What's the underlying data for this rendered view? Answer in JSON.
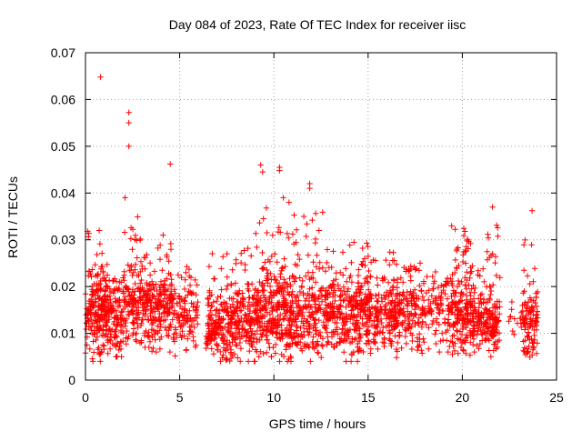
{
  "chart_data": {
    "type": "scatter",
    "title": "Day 084 of 2023, Rate Of TEC Index for receiver iisc",
    "xlabel": "GPS time / hours",
    "ylabel": "ROTI / TECUs",
    "xlim": [
      0,
      25
    ],
    "ylim": [
      0,
      0.07
    ],
    "xticks": [
      0,
      5,
      10,
      15,
      20,
      25
    ],
    "xtick_labels": [
      "0",
      "5",
      "10",
      "15",
      "20",
      "25"
    ],
    "yticks": [
      0,
      0.01,
      0.02,
      0.03,
      0.04,
      0.05,
      0.06,
      0.07
    ],
    "ytick_labels": [
      "0",
      "0.01",
      "0.02",
      "0.03",
      "0.04",
      "0.05",
      "0.06",
      "0.07"
    ],
    "grid": true,
    "legend": "none",
    "marker": "plus",
    "color": "#ff0000",
    "notable_points": [
      {
        "x": 0.8,
        "y": 0.0648
      },
      {
        "x": 2.3,
        "y": 0.0572
      },
      {
        "x": 2.3,
        "y": 0.055
      },
      {
        "x": 2.3,
        "y": 0.05
      },
      {
        "x": 4.5,
        "y": 0.0462
      },
      {
        "x": 9.3,
        "y": 0.046
      },
      {
        "x": 9.4,
        "y": 0.0445
      },
      {
        "x": 10.3,
        "y": 0.0455
      },
      {
        "x": 10.3,
        "y": 0.0448
      },
      {
        "x": 11.9,
        "y": 0.042
      },
      {
        "x": 11.9,
        "y": 0.041
      },
      {
        "x": 2.1,
        "y": 0.039
      },
      {
        "x": 10.5,
        "y": 0.039
      },
      {
        "x": 10.8,
        "y": 0.038
      },
      {
        "x": 23.7,
        "y": 0.0362
      },
      {
        "x": 21.6,
        "y": 0.037
      },
      {
        "x": 9.6,
        "y": 0.0368
      }
    ],
    "bands": [
      {
        "x_start": 0.0,
        "x_end": 1.2,
        "y_min": 0.004,
        "y_max": 0.034,
        "y_center": 0.014,
        "count": 220
      },
      {
        "x_start": 1.2,
        "x_end": 2.0,
        "y_min": 0.005,
        "y_max": 0.022,
        "y_center": 0.013,
        "count": 110
      },
      {
        "x_start": 2.0,
        "x_end": 3.4,
        "y_min": 0.007,
        "y_max": 0.035,
        "y_center": 0.016,
        "count": 200
      },
      {
        "x_start": 3.4,
        "x_end": 4.7,
        "y_min": 0.006,
        "y_max": 0.031,
        "y_center": 0.015,
        "count": 180
      },
      {
        "x_start": 4.7,
        "x_end": 6.0,
        "y_min": 0.005,
        "y_max": 0.025,
        "y_center": 0.013,
        "count": 110
      },
      {
        "x_start": 6.4,
        "x_end": 7.8,
        "y_min": 0.004,
        "y_max": 0.028,
        "y_center": 0.011,
        "count": 190
      },
      {
        "x_start": 7.8,
        "x_end": 9.0,
        "y_min": 0.004,
        "y_max": 0.029,
        "y_center": 0.012,
        "count": 160
      },
      {
        "x_start": 9.0,
        "x_end": 10.0,
        "y_min": 0.005,
        "y_max": 0.035,
        "y_center": 0.014,
        "count": 160
      },
      {
        "x_start": 10.0,
        "x_end": 11.0,
        "y_min": 0.004,
        "y_max": 0.033,
        "y_center": 0.014,
        "count": 170
      },
      {
        "x_start": 11.0,
        "x_end": 12.6,
        "y_min": 0.004,
        "y_max": 0.036,
        "y_center": 0.013,
        "count": 200
      },
      {
        "x_start": 12.6,
        "x_end": 14.0,
        "y_min": 0.004,
        "y_max": 0.028,
        "y_center": 0.013,
        "count": 170
      },
      {
        "x_start": 14.0,
        "x_end": 15.2,
        "y_min": 0.004,
        "y_max": 0.03,
        "y_center": 0.014,
        "count": 190
      },
      {
        "x_start": 15.2,
        "x_end": 16.5,
        "y_min": 0.006,
        "y_max": 0.028,
        "y_center": 0.014,
        "count": 160
      },
      {
        "x_start": 16.5,
        "x_end": 18.0,
        "y_min": 0.004,
        "y_max": 0.025,
        "y_center": 0.014,
        "count": 160
      },
      {
        "x_start": 18.0,
        "x_end": 19.4,
        "y_min": 0.006,
        "y_max": 0.024,
        "y_center": 0.014,
        "count": 100
      },
      {
        "x_start": 19.4,
        "x_end": 20.5,
        "y_min": 0.005,
        "y_max": 0.033,
        "y_center": 0.014,
        "count": 180
      },
      {
        "x_start": 20.5,
        "x_end": 21.3,
        "y_min": 0.006,
        "y_max": 0.026,
        "y_center": 0.013,
        "count": 100
      },
      {
        "x_start": 21.3,
        "x_end": 22.0,
        "y_min": 0.005,
        "y_max": 0.037,
        "y_center": 0.012,
        "count": 110
      },
      {
        "x_start": 22.4,
        "x_end": 23.2,
        "y_min": 0.009,
        "y_max": 0.02,
        "y_center": 0.013,
        "count": 15
      },
      {
        "x_start": 23.2,
        "x_end": 24.0,
        "y_min": 0.004,
        "y_max": 0.03,
        "y_center": 0.012,
        "count": 110
      }
    ]
  }
}
